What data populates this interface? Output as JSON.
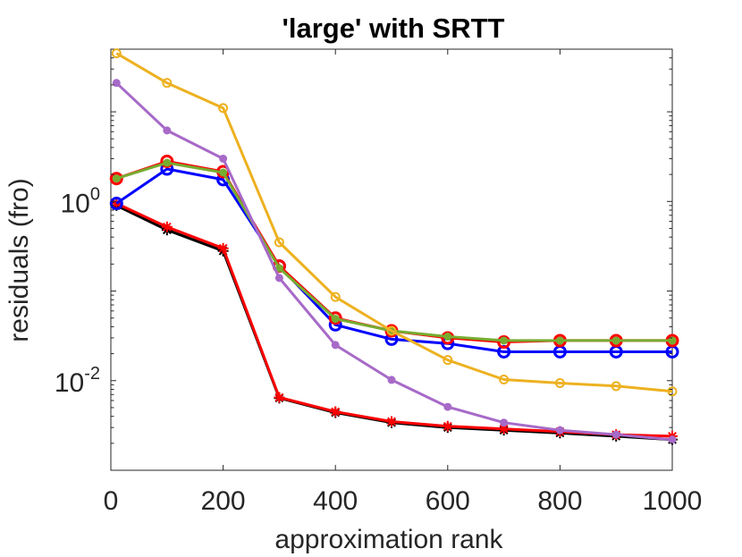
{
  "chart_data": {
    "type": "line",
    "title": "'large' with SRTT",
    "xlabel": "approximation rank",
    "ylabel": "residuals (fro)",
    "xscale": "linear",
    "yscale": "log",
    "xlim": [
      0,
      1000
    ],
    "ylim": [
      0.001,
      50
    ],
    "xticks": [
      0,
      200,
      400,
      600,
      800,
      1000
    ],
    "xtick_labels": [
      "0",
      "200",
      "400",
      "600",
      "800",
      "1000"
    ],
    "yticks": [
      {
        "value": 1,
        "base": "10",
        "exp": "0"
      },
      {
        "value": 0.01,
        "base": "10",
        "exp": "-2"
      }
    ],
    "grid": false,
    "box": true,
    "x": [
      10,
      100,
      200,
      300,
      400,
      500,
      600,
      700,
      800,
      900,
      1000
    ],
    "series": [
      {
        "name": "black-star",
        "color": "#000000",
        "marker": "star",
        "values": [
          0.9,
          0.48,
          0.28,
          0.0064,
          0.0044,
          0.0034,
          0.003,
          0.0028,
          0.0026,
          0.0024,
          0.0022
        ]
      },
      {
        "name": "red-star",
        "color": "#ff0000",
        "marker": "star",
        "values": [
          0.95,
          0.52,
          0.3,
          0.0065,
          0.0045,
          0.0035,
          0.0031,
          0.0029,
          0.0027,
          0.0025,
          0.0024
        ]
      },
      {
        "name": "blue-circle",
        "color": "#0000ff",
        "marker": "circle",
        "values": [
          0.95,
          2.3,
          1.75,
          0.19,
          0.042,
          0.029,
          0.026,
          0.021,
          0.021,
          0.021,
          0.021
        ]
      },
      {
        "name": "red-circle",
        "color": "#ff0000",
        "marker": "circle",
        "values": [
          1.8,
          2.8,
          2.15,
          0.19,
          0.05,
          0.036,
          0.03,
          0.027,
          0.028,
          0.028,
          0.028
        ]
      },
      {
        "name": "green-dot",
        "color": "#77ac30",
        "marker": "dot",
        "values": [
          1.8,
          2.7,
          2.1,
          0.18,
          0.049,
          0.036,
          0.031,
          0.028,
          0.028,
          0.028,
          0.028
        ]
      },
      {
        "name": "purple-dot",
        "color": "#a76ac8",
        "marker": "dot",
        "values": [
          21,
          6.2,
          3.0,
          0.14,
          0.025,
          0.0102,
          0.0051,
          0.0034,
          0.0028,
          0.0025,
          0.0022
        ]
      },
      {
        "name": "yellow-circle",
        "color": "#edb120",
        "marker": "circle-small",
        "values": [
          45,
          21,
          11,
          0.35,
          0.086,
          0.036,
          0.017,
          0.0103,
          0.0094,
          0.0087,
          0.0076
        ]
      }
    ]
  }
}
